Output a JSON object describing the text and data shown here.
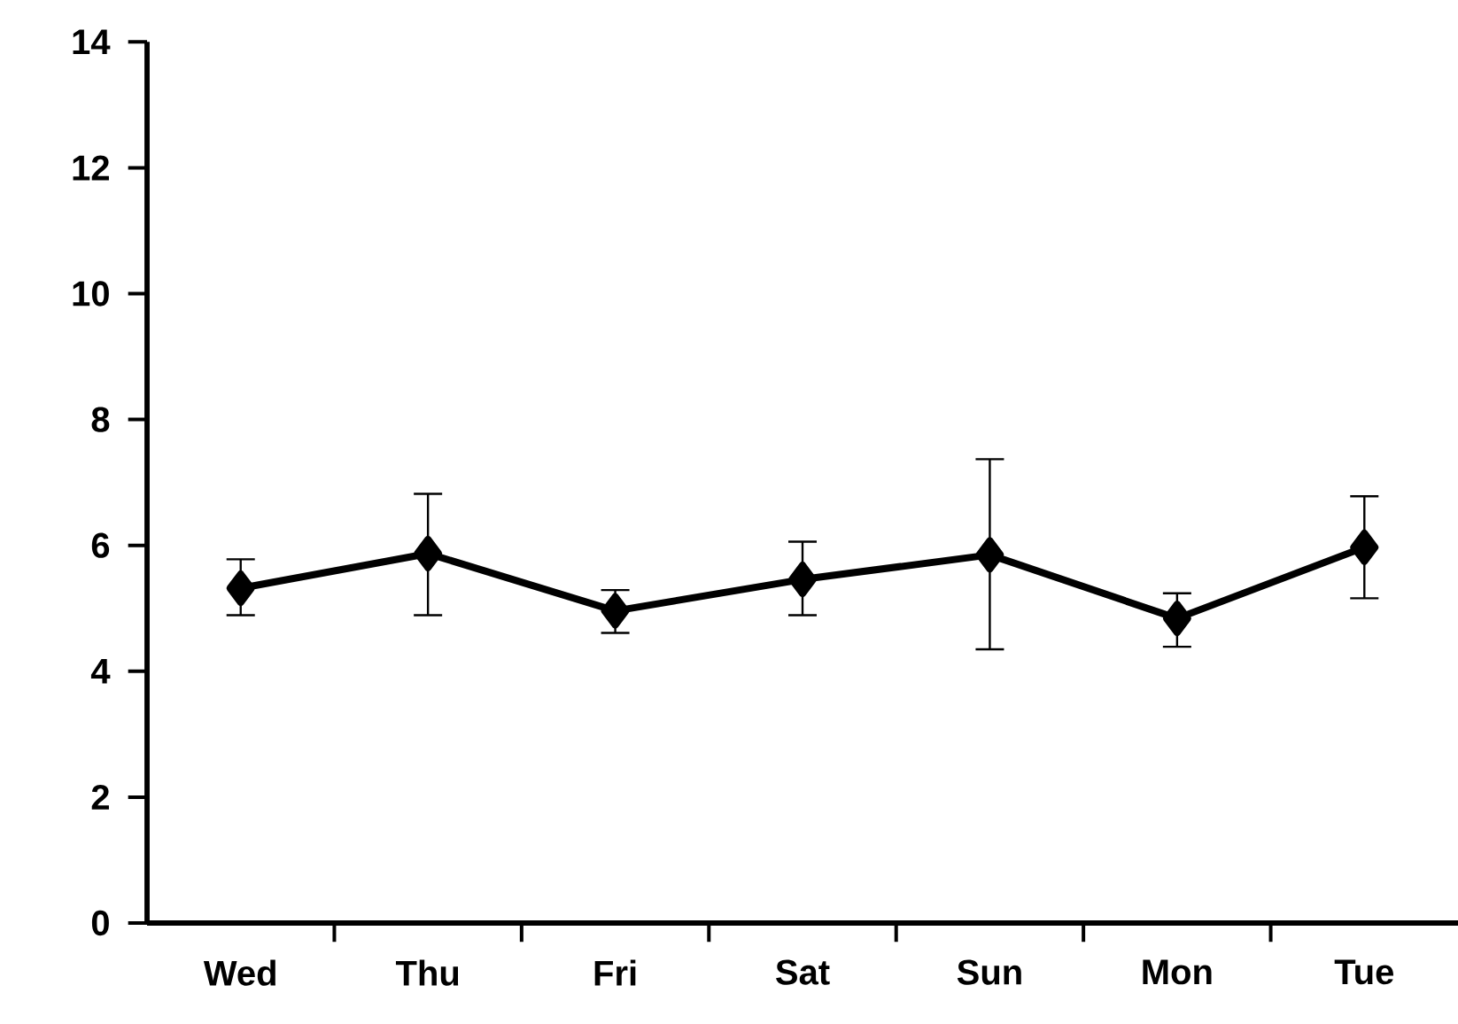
{
  "chart_data": {
    "type": "line",
    "categories": [
      "Wed",
      "Thu",
      "Fri",
      "Sat",
      "Sun",
      "Mon",
      "Tue"
    ],
    "values": [
      5.32,
      5.87,
      4.96,
      5.46,
      5.85,
      4.84,
      5.97
    ],
    "errors": [
      [
        4.89,
        5.78
      ],
      [
        4.89,
        6.82
      ],
      [
        4.61,
        5.29
      ],
      [
        4.89,
        6.06
      ],
      [
        4.35,
        7.37
      ],
      [
        4.39,
        5.24
      ],
      [
        5.16,
        6.78
      ]
    ],
    "color": "#000000",
    "marker": "diamond",
    "line_style": "solid",
    "ylim": [
      0,
      14
    ],
    "yticks": [
      0,
      2,
      4,
      6,
      8,
      10,
      12,
      14
    ],
    "grid": false
  }
}
